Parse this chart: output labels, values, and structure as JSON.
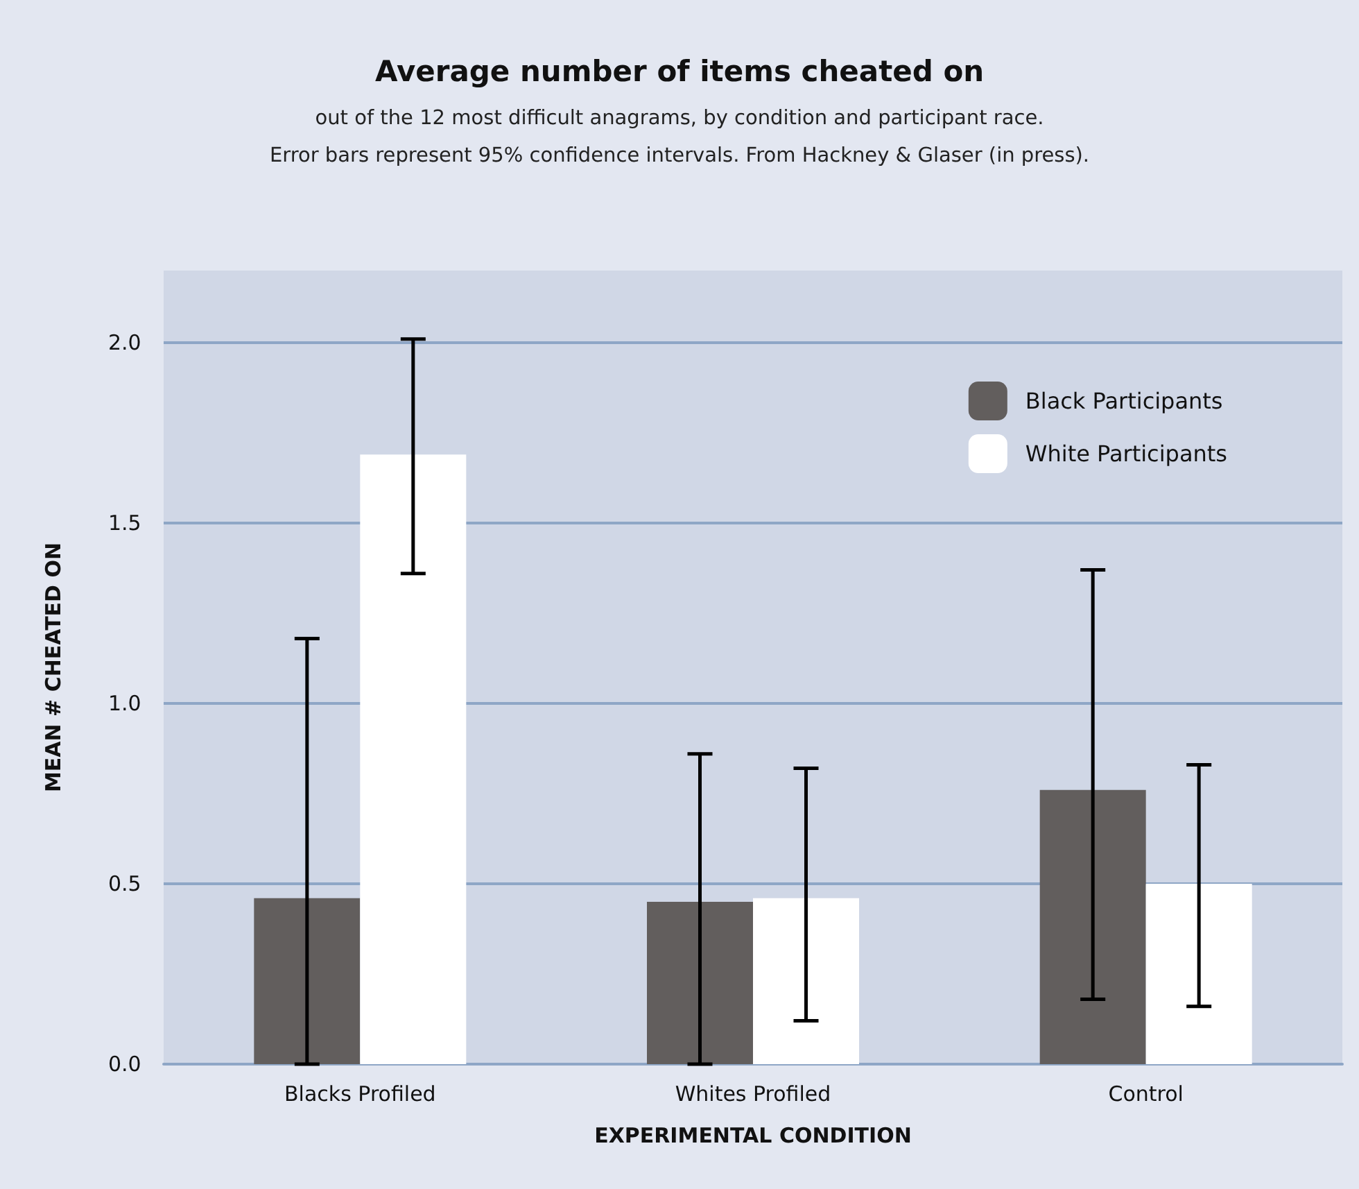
{
  "chart_data": {
    "type": "bar",
    "title": "Average number of items cheated on",
    "subtitle": "out of the 12 most difficult anagrams, by condition and participant race.\nError bars represent 95% confidence intervals. From Hackney & Glaser (in press).",
    "xlabel": "EXPERIMENTAL CONDITION",
    "ylabel": "MEAN # CHEATED ON",
    "categories": [
      "Blacks Profiled",
      "Whites Profiled",
      "Control"
    ],
    "series": [
      {
        "name": "Black Participants",
        "color": "#625e5d",
        "values": [
          0.46,
          0.45,
          0.76
        ],
        "errors": [
          [
            0,
            1.18
          ],
          [
            0,
            0.86
          ],
          [
            0.18,
            1.37
          ]
        ]
      },
      {
        "name": "White Participants",
        "color": "#ffffff",
        "values": [
          1.69,
          0.46,
          0.5
        ],
        "errors": [
          [
            1.36,
            2.01
          ],
          [
            0.12,
            0.82
          ],
          [
            0.16,
            0.83
          ]
        ]
      }
    ],
    "ylim": [
      0,
      2.2
    ],
    "yticks": [
      {
        "value": 0,
        "label": "0.0"
      },
      {
        "value": 0.5,
        "label": "0.5"
      },
      {
        "value": 1,
        "label": "1.0"
      },
      {
        "value": 1.5,
        "label": "1.5"
      },
      {
        "value": 2,
        "label": "2.0"
      }
    ],
    "grid": "y",
    "legend": "top right"
  }
}
